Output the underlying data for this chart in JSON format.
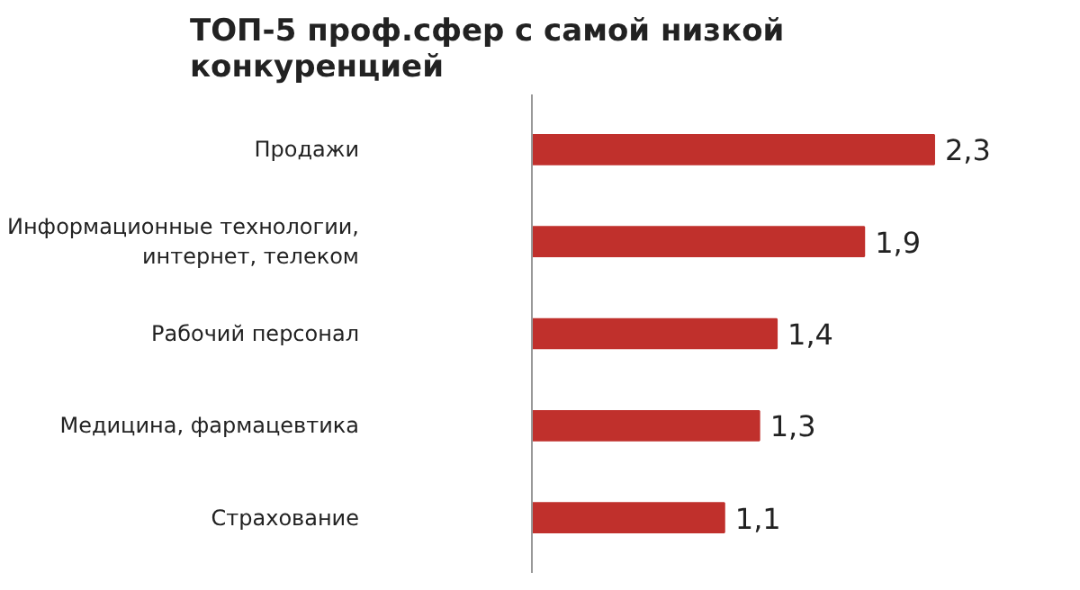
{
  "chart_data": {
    "type": "bar",
    "orientation": "horizontal",
    "title": "ТОП-5 проф.сфер с самой низкой\nконкуренцией",
    "categories": [
      "Продажи",
      "Информационные технологии,\nинтернет, телеком",
      "Рабочий персонал",
      "Медицина, фармацевтика",
      "Страхование"
    ],
    "values": [
      2.3,
      1.9,
      1.4,
      1.3,
      1.1
    ],
    "value_labels": [
      "2,3",
      "1,9",
      "1,4",
      "1,3",
      "1,1"
    ],
    "color": "#c0302c",
    "grid": false
  }
}
